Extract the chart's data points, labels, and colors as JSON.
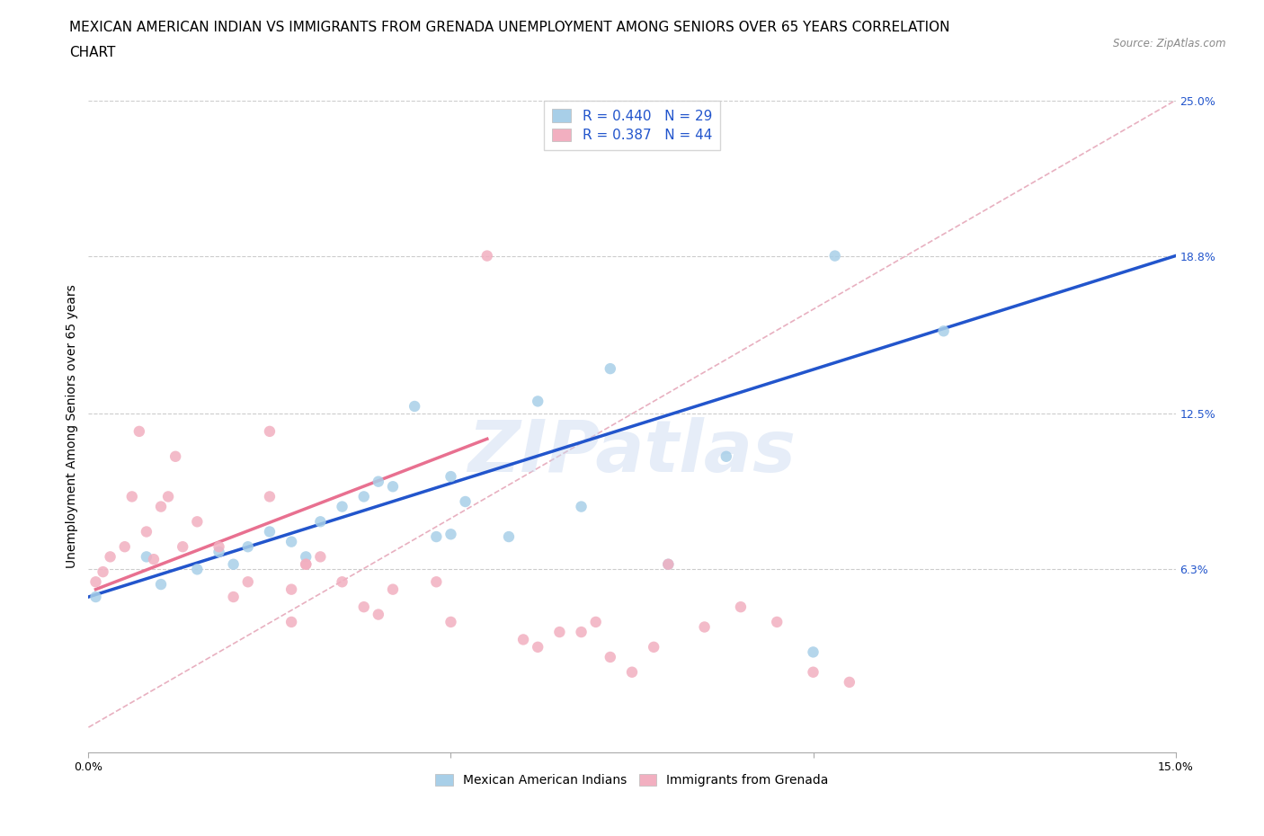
{
  "title_line1": "MEXICAN AMERICAN INDIAN VS IMMIGRANTS FROM GRENADA UNEMPLOYMENT AMONG SENIORS OVER 65 YEARS CORRELATION",
  "title_line2": "CHART",
  "source": "Source: ZipAtlas.com",
  "ylabel": "Unemployment Among Seniors over 65 years",
  "watermark": "ZIPatlas",
  "legend_r1": "R = 0.440",
  "legend_n1": "N = 29",
  "legend_r2": "R = 0.387",
  "legend_n2": "N = 44",
  "xlim": [
    0.0,
    0.15
  ],
  "ylim": [
    -0.01,
    0.25
  ],
  "yplot_min": 0.0,
  "xticks": [
    0.0,
    0.05,
    0.1,
    0.15
  ],
  "xticklabels": [
    "0.0%",
    "",
    "",
    "15.0%"
  ],
  "ytick_labels_right": [
    "6.3%",
    "12.5%",
    "18.8%",
    "25.0%"
  ],
  "yticks_right": [
    0.063,
    0.125,
    0.188,
    0.25
  ],
  "color_blue": "#a8cfe8",
  "color_pink": "#f2afc0",
  "line_blue": "#2255cc",
  "line_pink": "#e87090",
  "line_dashed_color": "#e8b0c0",
  "blue_scatter": [
    [
      0.001,
      0.052
    ],
    [
      0.008,
      0.068
    ],
    [
      0.01,
      0.057
    ],
    [
      0.015,
      0.063
    ],
    [
      0.018,
      0.07
    ],
    [
      0.02,
      0.065
    ],
    [
      0.022,
      0.072
    ],
    [
      0.025,
      0.078
    ],
    [
      0.028,
      0.074
    ],
    [
      0.03,
      0.068
    ],
    [
      0.032,
      0.082
    ],
    [
      0.035,
      0.088
    ],
    [
      0.038,
      0.092
    ],
    [
      0.04,
      0.098
    ],
    [
      0.042,
      0.096
    ],
    [
      0.045,
      0.128
    ],
    [
      0.048,
      0.076
    ],
    [
      0.05,
      0.077
    ],
    [
      0.05,
      0.1
    ],
    [
      0.052,
      0.09
    ],
    [
      0.058,
      0.076
    ],
    [
      0.062,
      0.13
    ],
    [
      0.068,
      0.088
    ],
    [
      0.072,
      0.143
    ],
    [
      0.08,
      0.065
    ],
    [
      0.088,
      0.108
    ],
    [
      0.1,
      0.03
    ],
    [
      0.103,
      0.188
    ],
    [
      0.118,
      0.158
    ]
  ],
  "pink_scatter": [
    [
      0.001,
      0.058
    ],
    [
      0.002,
      0.062
    ],
    [
      0.003,
      0.068
    ],
    [
      0.005,
      0.072
    ],
    [
      0.006,
      0.092
    ],
    [
      0.007,
      0.118
    ],
    [
      0.008,
      0.078
    ],
    [
      0.009,
      0.067
    ],
    [
      0.01,
      0.088
    ],
    [
      0.011,
      0.092
    ],
    [
      0.012,
      0.108
    ],
    [
      0.013,
      0.072
    ],
    [
      0.015,
      0.082
    ],
    [
      0.018,
      0.072
    ],
    [
      0.02,
      0.052
    ],
    [
      0.022,
      0.058
    ],
    [
      0.025,
      0.092
    ],
    [
      0.025,
      0.118
    ],
    [
      0.028,
      0.042
    ],
    [
      0.028,
      0.055
    ],
    [
      0.03,
      0.065
    ],
    [
      0.03,
      0.065
    ],
    [
      0.032,
      0.068
    ],
    [
      0.035,
      0.058
    ],
    [
      0.038,
      0.048
    ],
    [
      0.04,
      0.045
    ],
    [
      0.042,
      0.055
    ],
    [
      0.048,
      0.058
    ],
    [
      0.05,
      0.042
    ],
    [
      0.055,
      0.188
    ],
    [
      0.06,
      0.035
    ],
    [
      0.062,
      0.032
    ],
    [
      0.065,
      0.038
    ],
    [
      0.068,
      0.038
    ],
    [
      0.07,
      0.042
    ],
    [
      0.072,
      0.028
    ],
    [
      0.075,
      0.022
    ],
    [
      0.078,
      0.032
    ],
    [
      0.08,
      0.065
    ],
    [
      0.085,
      0.04
    ],
    [
      0.09,
      0.048
    ],
    [
      0.095,
      0.042
    ],
    [
      0.1,
      0.022
    ],
    [
      0.105,
      0.018
    ]
  ],
  "blue_line_x": [
    0.0,
    0.15
  ],
  "blue_line_y": [
    0.052,
    0.188
  ],
  "pink_line_x": [
    0.001,
    0.055
  ],
  "pink_line_y": [
    0.055,
    0.115
  ],
  "dashed_line_x": [
    0.0,
    0.15
  ],
  "dashed_line_y": [
    0.0,
    0.25
  ],
  "title_fontsize": 11,
  "axis_label_fontsize": 10,
  "tick_fontsize": 9,
  "legend_fontsize": 11
}
